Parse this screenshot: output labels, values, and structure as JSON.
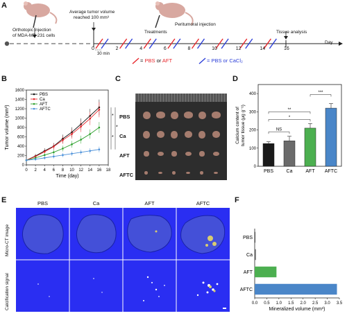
{
  "panelA": {
    "label": "A",
    "orthotopic": "Orthotopic injection",
    "orthotopic2": "of MDA-MB-231 cells",
    "avg": "Average tumor volume",
    "avg2": "reached 100 mm³",
    "peri": "Peritumoral injection",
    "treatments": "Treatments",
    "tissue": "Tissue analysis",
    "day": "Day",
    "min30": "30 min",
    "ticks": [
      "0",
      "2",
      "4",
      "6",
      "8",
      "10",
      "12",
      "14",
      "16"
    ],
    "legend_red_eq": "= ",
    "legend_pbs": "PBS",
    "legend_or": " or ",
    "legend_aft": "AFT",
    "legend_blue_eq": "= PBS or ",
    "legend_cacl2": "CaCl₂",
    "colors": {
      "red": "#e8262b",
      "blue": "#2b3ed8"
    }
  },
  "panelB": {
    "label": "B",
    "chart_data": {
      "type": "line",
      "xlabel": "Time (day)",
      "ylabel": "Tumor volume (mm³)",
      "xlim": [
        0,
        18
      ],
      "ylim": [
        0,
        1600
      ],
      "xticks": [
        "0",
        "2",
        "4",
        "6",
        "8",
        "10",
        "12",
        "14",
        "16",
        "18"
      ],
      "yticks": [
        "0",
        "200",
        "400",
        "600",
        "800",
        "1000",
        "1200",
        "1400",
        "1600"
      ],
      "x": [
        0,
        2,
        4,
        6,
        8,
        10,
        12,
        14,
        16
      ],
      "series": [
        {
          "name": "PBS",
          "color": "#111111",
          "values": [
            100,
            190,
            300,
            400,
            560,
            700,
            870,
            1050,
            1230
          ]
        },
        {
          "name": "Ca",
          "color": "#e8262b",
          "values": [
            100,
            180,
            280,
            390,
            530,
            660,
            820,
            990,
            1180
          ]
        },
        {
          "name": "AFT",
          "color": "#2ca02c",
          "values": [
            100,
            150,
            210,
            270,
            350,
            440,
            540,
            660,
            800
          ]
        },
        {
          "name": "AFTC",
          "color": "#4a90d9",
          "values": [
            100,
            120,
            150,
            180,
            210,
            240,
            270,
            300,
            330
          ]
        }
      ],
      "sig": [
        "*",
        "*",
        "***"
      ]
    }
  },
  "panelC": {
    "label": "C",
    "rows": [
      "PBS",
      "Ca",
      "AFT",
      "AFTC"
    ]
  },
  "panelD": {
    "label": "D",
    "chart_data": {
      "type": "bar",
      "categories": [
        "PBS",
        "Ca",
        "AFT",
        "AFTC"
      ],
      "values": [
        125,
        140,
        210,
        320
      ],
      "errors": [
        10,
        25,
        25,
        25
      ],
      "colors": [
        "#1a1a1a",
        "#6b6b6b",
        "#4caf50",
        "#4a86c8"
      ],
      "ylabel": "Calcium content of tumor tissue (μg g⁻¹)",
      "ylabel1": "Calcium content of",
      "ylabel2": "tumor tissue (μg g⁻¹)",
      "ylim": [
        0,
        450
      ],
      "yticks": [
        "0",
        "100",
        "200",
        "300",
        "400"
      ],
      "sig": [
        "NS",
        "*",
        "**",
        "***"
      ]
    }
  },
  "panelE": {
    "label": "E",
    "cols": [
      "PBS",
      "Ca",
      "AFT",
      "AFTC"
    ],
    "row1": "Micro-CT image",
    "row2": "Calcification signal"
  },
  "panelF": {
    "label": "F",
    "chart_data": {
      "type": "bar",
      "orientation": "horizontal",
      "categories": [
        "PBS",
        "Ca",
        "AFT",
        "AFTC"
      ],
      "values": [
        0.0,
        0.05,
        0.9,
        3.4
      ],
      "colors": [
        "#1a1a1a",
        "#6b6b6b",
        "#4caf50",
        "#4a86c8"
      ],
      "xlabel": "Mineralized volume (mm³)",
      "xlim": [
        0,
        3.5
      ],
      "xticks": [
        "0.0",
        "0.5",
        "1.0",
        "1.5",
        "2.0",
        "2.5",
        "3.0",
        "3.5"
      ]
    }
  }
}
